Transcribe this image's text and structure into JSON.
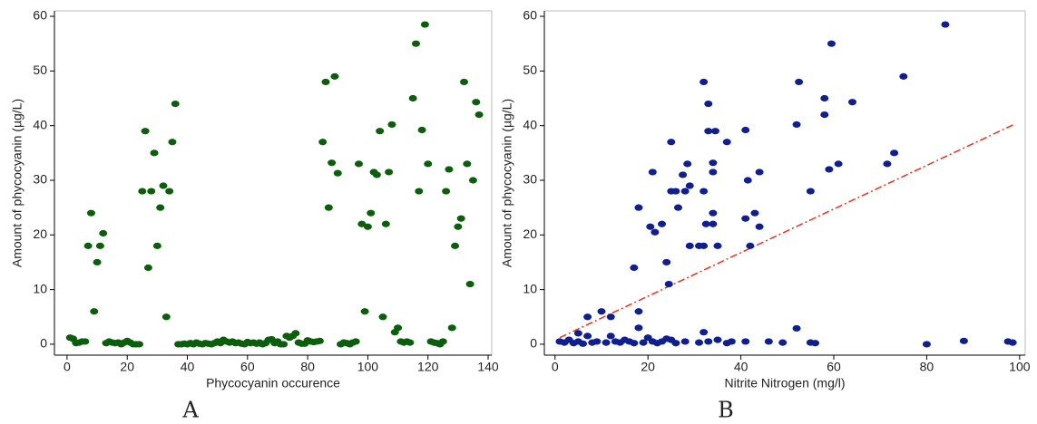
{
  "chart_data": [
    {
      "type": "scatter",
      "caption": "A",
      "x_label": "Phycocyanin occurence",
      "y_label": "Amount of phycocyanin (µg/L)",
      "color": "#0b5e0b",
      "xlim": [
        -4.2,
        141.2
      ],
      "ylim": [
        -2,
        61
      ],
      "xticks": [
        0,
        20,
        40,
        60,
        80,
        100,
        120,
        140
      ],
      "yticks": [
        0,
        10,
        20,
        30,
        40,
        50,
        60
      ],
      "x": [
        1,
        2,
        3,
        4,
        5,
        6,
        7,
        8,
        9,
        10,
        11,
        12,
        13,
        14,
        15,
        16,
        17,
        18,
        19,
        20,
        21,
        22,
        23,
        24,
        25,
        26,
        27,
        28,
        29,
        30,
        31,
        32,
        33,
        34,
        35,
        36,
        37,
        38,
        39,
        40,
        41,
        42,
        43,
        44,
        45,
        46,
        47,
        48,
        49,
        50,
        51,
        52,
        53,
        54,
        55,
        56,
        57,
        58,
        59,
        60,
        61,
        62,
        63,
        64,
        65,
        66,
        67,
        68,
        69,
        70,
        71,
        72,
        73,
        74,
        75,
        76,
        77,
        78,
        79,
        80,
        81,
        82,
        83,
        84,
        85,
        86,
        87,
        88,
        89,
        90,
        91,
        92,
        93,
        94,
        95,
        96,
        97,
        98,
        99,
        100,
        101,
        102,
        103,
        104,
        105,
        106,
        107,
        108,
        109,
        110,
        111,
        112,
        113,
        114,
        115,
        116,
        117,
        118,
        119,
        120,
        121,
        122,
        123,
        124,
        125,
        126,
        127,
        128,
        129,
        130,
        131,
        132,
        133,
        134,
        135,
        136,
        137
      ],
      "values": [
        1.2,
        1,
        0.2,
        0.3,
        0.5,
        0.5,
        18,
        24,
        6,
        15,
        18,
        20.3,
        0.2,
        0.5,
        0.3,
        0.2,
        0.3,
        0,
        0.3,
        0.6,
        0.3,
        0,
        0,
        0,
        28,
        39,
        14,
        28,
        35,
        18,
        25,
        29,
        5,
        28,
        37,
        44,
        0,
        0,
        0.1,
        0,
        0.2,
        0,
        0.3,
        0.1,
        0,
        0.2,
        0.1,
        0,
        0.2,
        0.5,
        0.2,
        0.8,
        0.5,
        0.3,
        0.5,
        0.2,
        0.3,
        0.1,
        0,
        0.4,
        0.2,
        0.3,
        0.1,
        0.3,
        0,
        0.2,
        0.8,
        0.9,
        0.2,
        0.5,
        0,
        0,
        1.5,
        1.2,
        1.5,
        2,
        0.3,
        0.1,
        0.1,
        0.7,
        0.5,
        0.4,
        0.5,
        0.6,
        37,
        48,
        25,
        33.2,
        49,
        31.3,
        0,
        0.3,
        0.2,
        0,
        0.3,
        0.5,
        33,
        22,
        6,
        21.5,
        24,
        31.5,
        31,
        39,
        5,
        22,
        31.5,
        40.2,
        2.2,
        3,
        0.5,
        0.3,
        0.5,
        0.3,
        45,
        55,
        28,
        39.2,
        58.5,
        33,
        0.5,
        0.3,
        0.2,
        0,
        0.5,
        28,
        32,
        3,
        18,
        21.5,
        23,
        48,
        33,
        11,
        30,
        44.3,
        42
      ]
    },
    {
      "type": "scatter",
      "caption": "B",
      "x_label": "Nitrite Nitrogen (mg/l)",
      "y_label": "Amount of phycocyanin (µg/L)",
      "color": "#0f1f8f",
      "xlim": [
        -2.3,
        101.2
      ],
      "ylim": [
        -2,
        61
      ],
      "xticks": [
        0,
        20,
        40,
        60,
        80,
        100
      ],
      "yticks": [
        0,
        10,
        20,
        30,
        40,
        50,
        60
      ],
      "x": [
        17,
        18,
        18,
        18,
        20.5,
        21,
        21.5,
        23,
        24,
        24.5,
        25,
        25,
        26,
        26.5,
        27.5,
        28,
        28.5,
        29,
        29,
        31,
        32,
        32,
        32,
        32,
        32.5,
        33,
        33,
        34,
        34,
        34,
        34,
        34.5,
        35,
        37,
        41,
        41,
        41.5,
        42,
        43,
        44,
        44,
        52,
        52.5,
        55,
        58,
        58,
        59,
        59.5,
        61,
        64,
        71.5,
        73,
        75,
        84,
        52,
        1,
        2,
        3,
        4,
        5,
        5,
        6,
        7,
        7,
        8,
        9,
        10,
        11,
        12,
        12,
        13,
        14,
        15,
        16,
        17,
        19,
        20,
        21,
        22,
        23,
        24,
        25,
        26,
        28,
        31,
        33,
        35,
        37,
        38,
        41,
        46,
        49,
        55,
        56,
        80,
        88,
        97.5,
        98.5
      ],
      "values": [
        14,
        25,
        6,
        3,
        21.5,
        31.5,
        20.5,
        22,
        15,
        11,
        28,
        37,
        28,
        25,
        31,
        28,
        33,
        29,
        18,
        18,
        28,
        48,
        18,
        2.2,
        22,
        39,
        44,
        33.2,
        31.5,
        24,
        22,
        39,
        18,
        37,
        39.2,
        23,
        30,
        18,
        24,
        31.5,
        21.5,
        40.2,
        48,
        28,
        45,
        42,
        32,
        55,
        33,
        44.3,
        33,
        35,
        49,
        58.5,
        2.9,
        0.5,
        0.3,
        0.8,
        0.2,
        2,
        0.5,
        0.1,
        5,
        1.5,
        0.3,
        0.5,
        6,
        0.3,
        1.5,
        5,
        0.5,
        0.3,
        0.8,
        0.5,
        0.2,
        0.3,
        1.2,
        0.5,
        0.2,
        0.5,
        1,
        0.8,
        0.2,
        0.5,
        0.3,
        0.5,
        0.8,
        0.2,
        0.5,
        0.5,
        0.5,
        0.3,
        0.3,
        0.2,
        0,
        0.6,
        0.5,
        0.3
      ],
      "trend_line": {
        "color": "#e8321e",
        "x": [
          1,
          99
        ],
        "y": [
          1.2,
          40.3
        ]
      }
    }
  ]
}
